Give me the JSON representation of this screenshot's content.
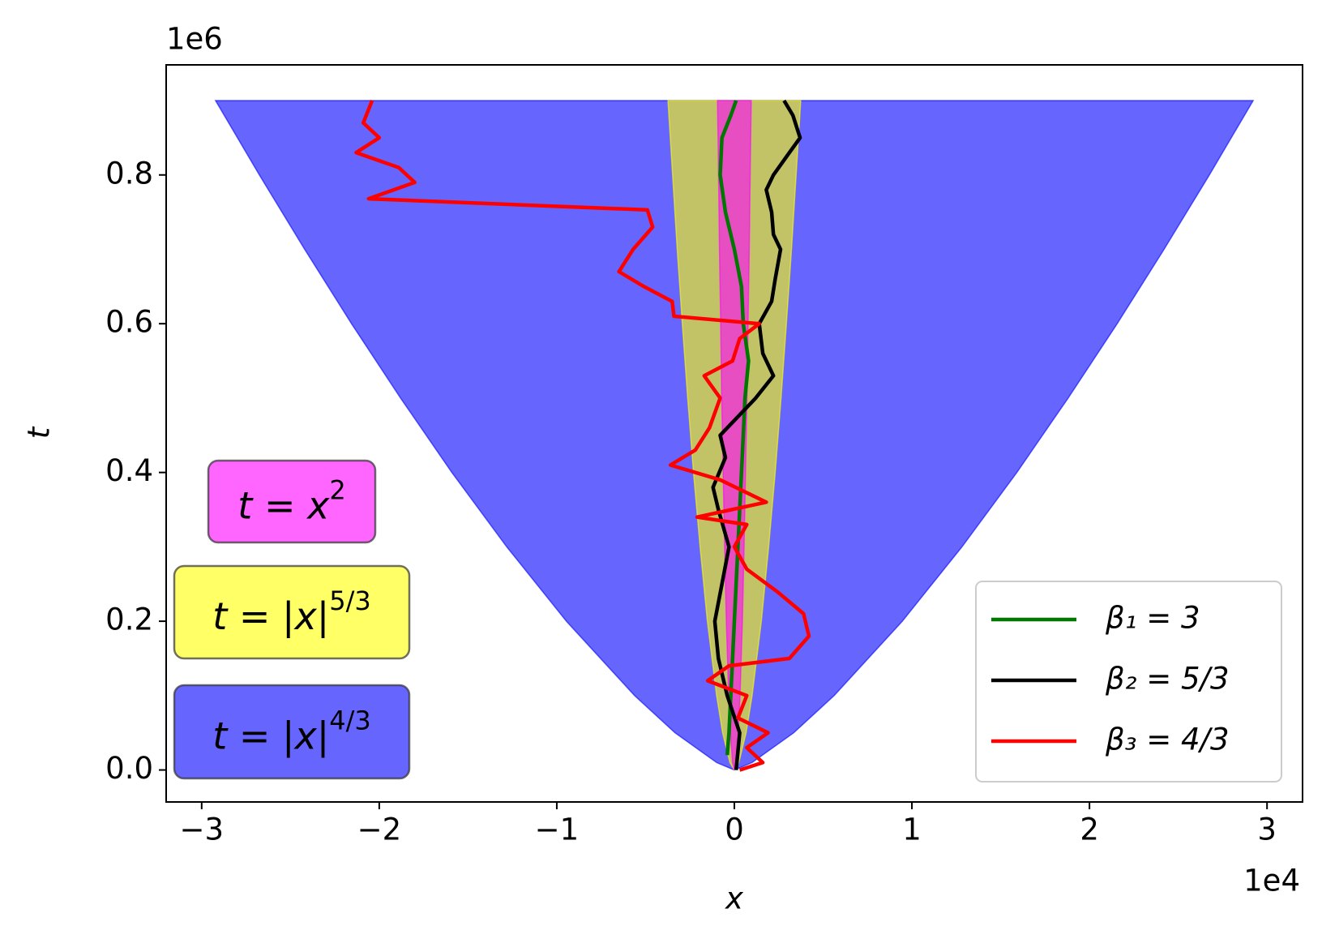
{
  "chart_data": {
    "type": "line",
    "xlabel": "x",
    "ylabel": "t",
    "x_offset_label": "1e4",
    "y_offset_label": "1e6",
    "xlim": [
      -3.2,
      3.2
    ],
    "ylim": [
      -0.043,
      0.948
    ],
    "xticks": [
      {
        "value": -3,
        "label": "−3"
      },
      {
        "value": -2,
        "label": "−2"
      },
      {
        "value": -1,
        "label": "−1"
      },
      0,
      1,
      2,
      3
    ],
    "yticks": [
      {
        "value": 0,
        "label": "0.0"
      },
      0.2,
      0.4,
      0.6,
      0.8
    ],
    "legend": "lower right",
    "regions": [
      {
        "label_base": "t = x",
        "label_exponent": "2",
        "color": "#ff00ff",
        "x": [
          -0.095,
          -0.089,
          -0.084,
          -0.077,
          -0.071,
          -0.063,
          -0.055,
          -0.045,
          -0.032,
          -0.022,
          -0.01,
          0,
          0.01,
          0.022,
          0.032,
          0.045,
          0.055,
          0.063,
          0.071,
          0.077,
          0.084,
          0.089,
          0.095
        ],
        "t": [
          0.9,
          0.8,
          0.7,
          0.6,
          0.5,
          0.4,
          0.3,
          0.2,
          0.1,
          0.05,
          0.01,
          0,
          0.01,
          0.05,
          0.1,
          0.2,
          0.3,
          0.4,
          0.5,
          0.6,
          0.7,
          0.8,
          0.9
        ]
      },
      {
        "label_base": "t = |x|",
        "label_exponent": "5/3",
        "color": "#ffff00",
        "x": [
          -0.374,
          -0.348,
          -0.322,
          -0.293,
          -0.263,
          -0.23,
          -0.193,
          -0.152,
          -0.1,
          -0.066,
          -0.025,
          0,
          0.025,
          0.066,
          0.1,
          0.152,
          0.193,
          0.23,
          0.263,
          0.293,
          0.322,
          0.348,
          0.374
        ],
        "t": [
          0.9,
          0.8,
          0.7,
          0.6,
          0.5,
          0.4,
          0.3,
          0.2,
          0.1,
          0.05,
          0.01,
          0,
          0.01,
          0.05,
          0.1,
          0.2,
          0.3,
          0.4,
          0.5,
          0.6,
          0.7,
          0.8,
          0.9
        ]
      },
      {
        "label_base": "t = |x|",
        "label_exponent": "4/3",
        "color": "#0000ff",
        "x": [
          -2.922,
          -2.675,
          -2.42,
          -2.156,
          -1.88,
          -1.591,
          -1.282,
          -0.946,
          -0.562,
          -0.334,
          -0.1,
          0,
          0.1,
          0.334,
          0.562,
          0.946,
          1.282,
          1.591,
          1.88,
          2.156,
          2.42,
          2.675,
          2.922
        ],
        "t": [
          0.9,
          0.8,
          0.7,
          0.6,
          0.5,
          0.4,
          0.3,
          0.2,
          0.1,
          0.05,
          0.01,
          0,
          0.01,
          0.05,
          0.1,
          0.2,
          0.3,
          0.4,
          0.5,
          0.6,
          0.7,
          0.8,
          0.9
        ]
      }
    ],
    "series": [
      {
        "name": "β₁ = 3",
        "color": "#007700",
        "x": [
          -0.04,
          -0.03,
          -0.02,
          -0.01,
          0,
          0.01,
          0.02,
          0.03,
          0.04,
          0.05,
          0.06,
          0.08,
          0.05,
          0.04,
          0,
          -0.05,
          -0.08,
          -0.07,
          -0.02,
          0.01
        ],
        "values": [
          0.02,
          0.05,
          0.1,
          0.15,
          0.2,
          0.25,
          0.3,
          0.35,
          0.4,
          0.45,
          0.5,
          0.55,
          0.6,
          0.65,
          0.7,
          0.75,
          0.8,
          0.85,
          0.88,
          0.9
        ]
      },
      {
        "name": "β₂ = 5/3",
        "color": "#000000",
        "x": [
          0.01,
          0.03,
          -0.04,
          -0.09,
          -0.11,
          -0.07,
          -0.03,
          -0.09,
          -0.12,
          -0.05,
          -0.08,
          0.04,
          0.12,
          0.22,
          0.16,
          0.14,
          0.21,
          0.23,
          0.26,
          0.22,
          0.21,
          0.18,
          0.22,
          0.31,
          0.37,
          0.33,
          0.28
        ],
        "values": [
          0,
          0.05,
          0.1,
          0.15,
          0.2,
          0.25,
          0.3,
          0.35,
          0.38,
          0.42,
          0.45,
          0.48,
          0.5,
          0.53,
          0.56,
          0.6,
          0.63,
          0.66,
          0.7,
          0.72,
          0.75,
          0.78,
          0.8,
          0.83,
          0.85,
          0.88,
          0.9
        ]
      },
      {
        "name": "β₃ = 4/3",
        "color": "#ff0000",
        "x": [
          0.03,
          0.16,
          0.07,
          0.19,
          0.02,
          0.07,
          -0.15,
          -0.03,
          0.31,
          0.42,
          0.39,
          0.24,
          0.07,
          0,
          0.07,
          -0.21,
          0.18,
          -0.08,
          -0.36,
          -0.22,
          -0.14,
          -0.08,
          -0.17,
          -0.01,
          0.03,
          0.14,
          -0.34,
          -0.35,
          -0.51,
          -0.65,
          -0.57,
          -0.46,
          -0.49,
          -2.06,
          -1.8,
          -1.89,
          -2.13,
          -2,
          -2.09,
          -2.04
        ],
        "values": [
          0,
          0.01,
          0.03,
          0.05,
          0.07,
          0.1,
          0.12,
          0.14,
          0.15,
          0.18,
          0.21,
          0.24,
          0.27,
          0.3,
          0.33,
          0.34,
          0.36,
          0.39,
          0.41,
          0.43,
          0.46,
          0.5,
          0.53,
          0.55,
          0.58,
          0.6,
          0.61,
          0.63,
          0.65,
          0.67,
          0.7,
          0.73,
          0.753,
          0.768,
          0.79,
          0.81,
          0.83,
          0.85,
          0.87,
          0.9
        ]
      }
    ]
  }
}
